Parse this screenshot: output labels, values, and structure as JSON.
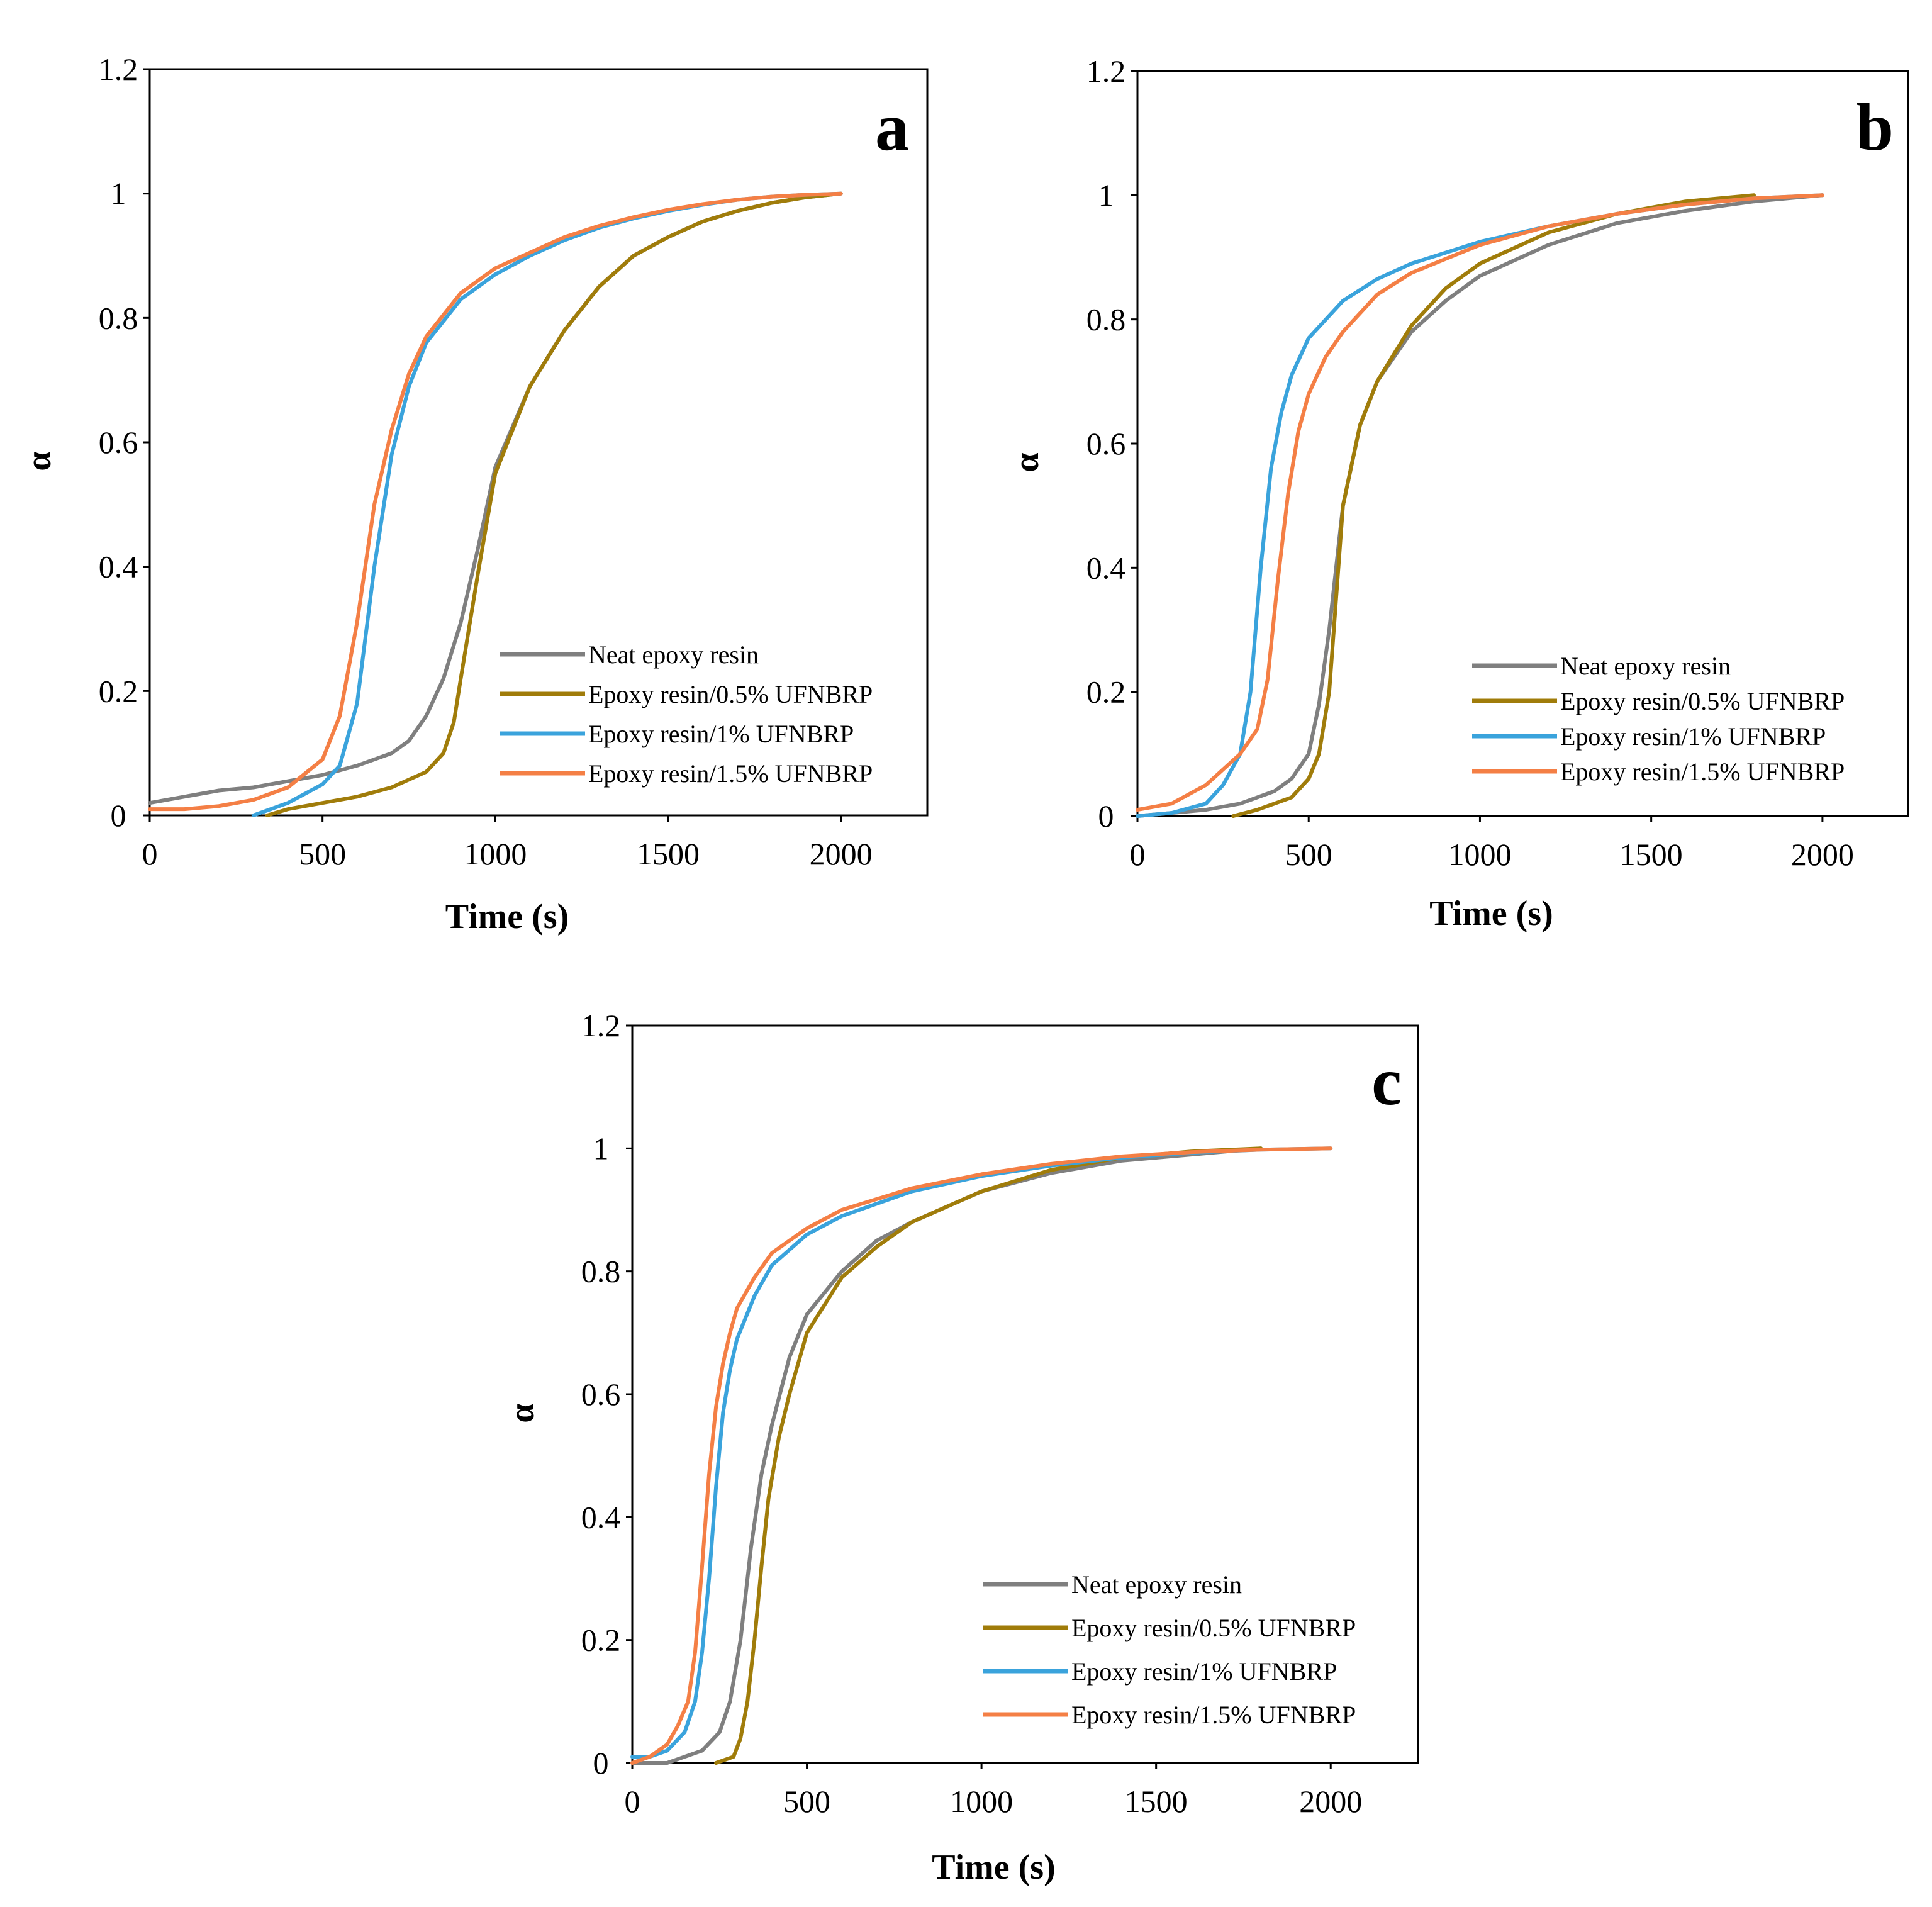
{
  "figure": {
    "colors": {
      "neat": "#7f7f7f",
      "p05": "#a07c0a",
      "p1": "#3aa3dc",
      "p15": "#f47f45",
      "axis": "#000000"
    }
  },
  "chart_data": [
    {
      "panel": "a",
      "type": "line",
      "title": "",
      "xlabel": "Time (s)",
      "ylabel": "α",
      "xlim": [
        0,
        2250
      ],
      "ylim": [
        0,
        1.2
      ],
      "xticks": [
        "0",
        "500",
        "1000",
        "1500",
        "2000"
      ],
      "yticks": [
        "0",
        "0.2",
        "0.4",
        "0.6",
        "0.8",
        "1",
        "1.2"
      ],
      "legend_position": "bottom-right",
      "series": [
        {
          "name": "Neat epoxy resin",
          "color": "#7f7f7f",
          "x": [
            0,
            100,
            200,
            300,
            400,
            500,
            600,
            700,
            750,
            800,
            850,
            900,
            950,
            1000,
            1100,
            1200,
            1300,
            1400,
            1500,
            1600,
            1700,
            1800,
            1900,
            2000
          ],
          "y": [
            0.02,
            0.03,
            0.04,
            0.045,
            0.055,
            0.065,
            0.08,
            0.1,
            0.12,
            0.16,
            0.22,
            0.31,
            0.43,
            0.56,
            0.69,
            0.78,
            0.85,
            0.9,
            0.93,
            0.955,
            0.972,
            0.985,
            0.994,
            1.0
          ]
        },
        {
          "name": "Epoxy resin/0.5% UFNBRP",
          "color": "#a07c0a",
          "x": [
            340,
            400,
            500,
            600,
            700,
            800,
            850,
            880,
            900,
            950,
            1000,
            1100,
            1200,
            1300,
            1400,
            1500,
            1600,
            1700,
            1800,
            1900,
            2000
          ],
          "y": [
            0.0,
            0.01,
            0.02,
            0.03,
            0.045,
            0.07,
            0.1,
            0.15,
            0.22,
            0.39,
            0.55,
            0.69,
            0.78,
            0.85,
            0.9,
            0.93,
            0.955,
            0.972,
            0.985,
            0.994,
            1.0
          ]
        },
        {
          "name": "Epoxy resin/1% UFNBRP",
          "color": "#3aa3dc",
          "x": [
            300,
            400,
            500,
            550,
            600,
            650,
            700,
            750,
            800,
            900,
            1000,
            1100,
            1200,
            1300,
            1400,
            1500,
            1600,
            1700,
            1800,
            1900,
            2000
          ],
          "y": [
            0.0,
            0.02,
            0.05,
            0.08,
            0.18,
            0.4,
            0.58,
            0.69,
            0.76,
            0.83,
            0.87,
            0.9,
            0.925,
            0.945,
            0.96,
            0.972,
            0.982,
            0.99,
            0.995,
            0.998,
            1.0
          ]
        },
        {
          "name": "Epoxy resin/1.5% UFNBRP",
          "color": "#f47f45",
          "x": [
            0,
            100,
            200,
            300,
            400,
            500,
            550,
            600,
            650,
            700,
            750,
            800,
            900,
            1000,
            1100,
            1200,
            1300,
            1400,
            1500,
            1600,
            1700,
            1800,
            1900,
            2000
          ],
          "y": [
            0.01,
            0.01,
            0.015,
            0.025,
            0.045,
            0.09,
            0.16,
            0.31,
            0.5,
            0.62,
            0.71,
            0.77,
            0.84,
            0.88,
            0.905,
            0.93,
            0.948,
            0.962,
            0.974,
            0.983,
            0.99,
            0.995,
            0.998,
            1.0
          ]
        }
      ]
    },
    {
      "panel": "b",
      "type": "line",
      "title": "",
      "xlabel": "Time (s)",
      "ylabel": "α",
      "xlim": [
        0,
        2250
      ],
      "ylim": [
        0,
        1.2
      ],
      "xticks": [
        "0",
        "500",
        "1000",
        "1500",
        "2000"
      ],
      "yticks": [
        "0",
        "0.2",
        "0.4",
        "0.6",
        "0.8",
        "1",
        "1.2"
      ],
      "legend_position": "bottom-right",
      "series": [
        {
          "name": "Neat epoxy resin",
          "color": "#7f7f7f",
          "x": [
            0,
            100,
            200,
            300,
            400,
            450,
            500,
            530,
            560,
            600,
            650,
            700,
            800,
            900,
            1000,
            1200,
            1400,
            1600,
            1800,
            2000
          ],
          "y": [
            0.0,
            0.005,
            0.01,
            0.02,
            0.04,
            0.06,
            0.1,
            0.18,
            0.3,
            0.5,
            0.63,
            0.7,
            0.78,
            0.83,
            0.87,
            0.92,
            0.955,
            0.975,
            0.99,
            1.0
          ]
        },
        {
          "name": "Epoxy resin/0.5% UFNBRP",
          "color": "#a07c0a",
          "x": [
            280,
            350,
            450,
            500,
            530,
            560,
            580,
            600,
            650,
            700,
            800,
            900,
            1000,
            1200,
            1400,
            1600,
            1800
          ],
          "y": [
            0.0,
            0.01,
            0.03,
            0.06,
            0.1,
            0.2,
            0.35,
            0.5,
            0.63,
            0.7,
            0.79,
            0.85,
            0.89,
            0.94,
            0.97,
            0.99,
            1.0
          ]
        },
        {
          "name": "Epoxy resin/1% UFNBRP",
          "color": "#3aa3dc",
          "x": [
            0,
            100,
            200,
            250,
            300,
            330,
            360,
            390,
            420,
            450,
            500,
            600,
            700,
            800,
            1000,
            1200,
            1400,
            1600,
            1800,
            2000
          ],
          "y": [
            0.0,
            0.005,
            0.02,
            0.05,
            0.1,
            0.2,
            0.4,
            0.56,
            0.65,
            0.71,
            0.77,
            0.83,
            0.865,
            0.89,
            0.925,
            0.95,
            0.97,
            0.985,
            0.995,
            1.0
          ]
        },
        {
          "name": "Epoxy resin/1.5% UFNBRP",
          "color": "#f47f45",
          "x": [
            0,
            100,
            200,
            300,
            350,
            380,
            410,
            440,
            470,
            500,
            550,
            600,
            700,
            800,
            1000,
            1200,
            1400,
            1600,
            1800,
            2000
          ],
          "y": [
            0.01,
            0.02,
            0.05,
            0.1,
            0.14,
            0.22,
            0.38,
            0.52,
            0.62,
            0.68,
            0.74,
            0.78,
            0.84,
            0.875,
            0.92,
            0.95,
            0.97,
            0.985,
            0.995,
            1.0
          ]
        }
      ]
    },
    {
      "panel": "c",
      "type": "line",
      "title": "",
      "xlabel": "Time (s)",
      "ylabel": "α",
      "xlim": [
        0,
        2250
      ],
      "ylim": [
        0,
        1.2
      ],
      "xticks": [
        "0",
        "500",
        "1000",
        "1500",
        "2000"
      ],
      "yticks": [
        "0",
        "0.2",
        "0.4",
        "0.6",
        "0.8",
        "1",
        "1.2"
      ],
      "legend_position": "bottom-right",
      "series": [
        {
          "name": "Neat epoxy resin",
          "color": "#7f7f7f",
          "x": [
            0,
            100,
            150,
            200,
            250,
            280,
            310,
            340,
            370,
            400,
            450,
            500,
            600,
            700,
            800,
            1000,
            1200,
            1400,
            1600,
            1800
          ],
          "y": [
            0.0,
            0.0,
            0.01,
            0.02,
            0.05,
            0.1,
            0.2,
            0.35,
            0.47,
            0.55,
            0.66,
            0.73,
            0.8,
            0.85,
            0.88,
            0.93,
            0.96,
            0.98,
            0.99,
            1.0
          ]
        },
        {
          "name": "Epoxy resin/0.5% UFNBRP",
          "color": "#a07c0a",
          "x": [
            240,
            290,
            310,
            330,
            350,
            370,
            390,
            420,
            450,
            500,
            600,
            700,
            800,
            1000,
            1200,
            1400,
            1600,
            1800
          ],
          "y": [
            0.0,
            0.01,
            0.04,
            0.1,
            0.2,
            0.32,
            0.43,
            0.53,
            0.6,
            0.7,
            0.79,
            0.84,
            0.88,
            0.93,
            0.965,
            0.985,
            0.995,
            1.0
          ]
        },
        {
          "name": "Epoxy resin/1% UFNBRP",
          "color": "#3aa3dc",
          "x": [
            0,
            50,
            100,
            150,
            180,
            200,
            220,
            240,
            260,
            280,
            300,
            350,
            400,
            500,
            600,
            800,
            1000,
            1200,
            1400,
            1600,
            1800,
            2000
          ],
          "y": [
            0.01,
            0.01,
            0.02,
            0.05,
            0.1,
            0.18,
            0.3,
            0.45,
            0.57,
            0.64,
            0.69,
            0.76,
            0.81,
            0.86,
            0.89,
            0.93,
            0.955,
            0.972,
            0.985,
            0.993,
            0.998,
            1.0
          ]
        },
        {
          "name": "Epoxy resin/1.5% UFNBRP",
          "color": "#f47f45",
          "x": [
            0,
            50,
            100,
            130,
            160,
            180,
            200,
            220,
            240,
            260,
            280,
            300,
            350,
            400,
            500,
            600,
            800,
            1000,
            1200,
            1400,
            1600,
            1800,
            2000
          ],
          "y": [
            0.0,
            0.01,
            0.03,
            0.06,
            0.1,
            0.18,
            0.32,
            0.47,
            0.58,
            0.65,
            0.7,
            0.74,
            0.79,
            0.83,
            0.87,
            0.9,
            0.935,
            0.958,
            0.975,
            0.987,
            0.994,
            0.998,
            1.0
          ]
        }
      ]
    }
  ]
}
